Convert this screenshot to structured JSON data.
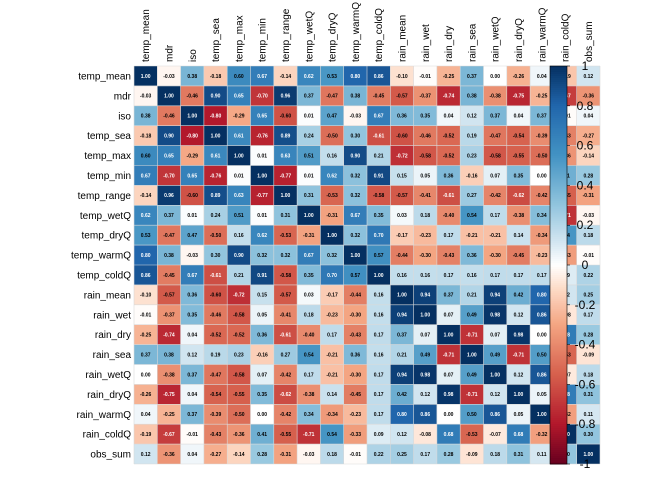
{
  "chart_data": {
    "type": "heatmap",
    "title": "",
    "variables": [
      "temp_mean",
      "mdr",
      "iso",
      "temp_sea",
      "temp_max",
      "temp_min",
      "temp_range",
      "temp_wetQ",
      "temp_dryQ",
      "temp_warmQ",
      "temp_coldQ",
      "rain_mean",
      "rain_wet",
      "rain_dry",
      "rain_sea",
      "rain_wetQ",
      "rain_dryQ",
      "rain_warmQ",
      "rain_coldQ",
      "obs_sum"
    ],
    "matrix": [
      [
        1.0,
        -0.03,
        0.38,
        -0.18,
        0.6,
        0.67,
        -0.14,
        0.62,
        0.53,
        0.8,
        0.86,
        -0.1,
        -0.01,
        -0.25,
        0.37,
        0.0,
        -0.26,
        0.04,
        -0.19,
        0.12
      ],
      [
        -0.03,
        1.0,
        -0.46,
        0.9,
        0.65,
        -0.7,
        0.96,
        0.37,
        -0.47,
        0.38,
        -0.45,
        -0.57,
        -0.37,
        -0.74,
        0.38,
        -0.38,
        -0.75,
        -0.25,
        -0.67,
        -0.36
      ],
      [
        0.38,
        -0.46,
        1.0,
        -0.8,
        -0.29,
        0.65,
        -0.6,
        0.01,
        0.47,
        -0.03,
        0.67,
        0.36,
        0.35,
        0.04,
        0.12,
        0.37,
        0.04,
        0.37,
        -0.01,
        0.04
      ],
      [
        -0.18,
        0.9,
        -0.8,
        1.0,
        0.61,
        -0.76,
        0.89,
        0.24,
        -0.5,
        0.3,
        -0.61,
        -0.6,
        -0.46,
        -0.52,
        0.19,
        -0.47,
        -0.54,
        -0.39,
        -0.43,
        -0.27
      ],
      [
        0.6,
        0.65,
        -0.29,
        0.61,
        1.0,
        0.01,
        0.63,
        0.51,
        0.16,
        0.9,
        0.21,
        -0.72,
        -0.58,
        -0.52,
        0.23,
        -0.58,
        -0.55,
        -0.5,
        -0.36,
        -0.14
      ],
      [
        0.67,
        -0.7,
        0.65,
        -0.76,
        0.01,
        1.0,
        -0.77,
        0.01,
        0.62,
        0.32,
        0.91,
        0.15,
        0.05,
        0.36,
        -0.16,
        0.07,
        0.35,
        0.0,
        0.41,
        0.28
      ],
      [
        -0.14,
        0.96,
        -0.6,
        0.89,
        0.63,
        -0.77,
        1.0,
        0.31,
        -0.53,
        0.32,
        -0.58,
        -0.57,
        -0.41,
        -0.61,
        0.27,
        -0.42,
        -0.62,
        -0.42,
        -0.55,
        -0.31
      ],
      [
        0.62,
        0.37,
        0.01,
        0.24,
        0.51,
        0.01,
        0.31,
        1.0,
        -0.31,
        0.67,
        0.35,
        0.03,
        0.18,
        -0.4,
        0.54,
        0.17,
        -0.38,
        0.34,
        -0.71,
        -0.03
      ],
      [
        0.53,
        -0.47,
        0.47,
        -0.5,
        0.16,
        0.62,
        -0.53,
        -0.31,
        1.0,
        0.32,
        0.7,
        -0.17,
        -0.23,
        0.17,
        -0.21,
        -0.21,
        0.14,
        -0.34,
        0.54,
        0.18
      ],
      [
        0.8,
        0.38,
        -0.03,
        0.3,
        0.9,
        0.32,
        0.32,
        0.67,
        0.32,
        1.0,
        0.57,
        -0.44,
        -0.3,
        -0.43,
        0.36,
        -0.3,
        -0.45,
        -0.23,
        -0.33,
        -0.01
      ],
      [
        0.86,
        -0.45,
        0.67,
        -0.61,
        0.21,
        0.91,
        -0.58,
        0.35,
        0.7,
        0.57,
        1.0,
        0.16,
        0.16,
        0.17,
        0.16,
        0.17,
        0.17,
        0.17,
        0.09,
        0.22
      ],
      [
        -0.1,
        -0.57,
        0.36,
        -0.6,
        -0.72,
        0.15,
        -0.57,
        0.03,
        -0.17,
        -0.44,
        0.16,
        1.0,
        0.94,
        0.37,
        0.21,
        0.94,
        0.42,
        0.8,
        0.12,
        0.25
      ],
      [
        -0.01,
        -0.37,
        0.35,
        -0.46,
        -0.58,
        0.05,
        -0.41,
        0.18,
        -0.23,
        -0.3,
        0.16,
        0.94,
        1.0,
        0.07,
        0.49,
        0.98,
        0.12,
        0.86,
        -0.08,
        0.17
      ],
      [
        -0.25,
        -0.74,
        0.04,
        -0.52,
        -0.52,
        0.36,
        -0.61,
        -0.4,
        0.17,
        -0.43,
        0.17,
        0.37,
        0.07,
        1.0,
        -0.71,
        0.07,
        0.98,
        0.0,
        0.68,
        0.28
      ],
      [
        0.37,
        0.38,
        0.12,
        0.19,
        0.23,
        -0.16,
        0.27,
        0.54,
        -0.21,
        0.36,
        0.16,
        0.21,
        0.49,
        -0.71,
        1.0,
        0.49,
        -0.71,
        0.5,
        -0.53,
        -0.09
      ],
      [
        0.0,
        -0.38,
        0.37,
        -0.47,
        -0.58,
        0.07,
        -0.42,
        0.17,
        -0.21,
        -0.3,
        0.17,
        0.94,
        0.98,
        0.07,
        0.49,
        1.0,
        0.12,
        0.86,
        -0.07,
        0.18
      ],
      [
        -0.26,
        -0.75,
        0.04,
        -0.54,
        -0.55,
        0.35,
        -0.62,
        -0.38,
        0.14,
        -0.45,
        0.17,
        0.42,
        0.12,
        0.98,
        -0.71,
        0.12,
        1.0,
        0.05,
        0.68,
        0.31
      ],
      [
        0.04,
        -0.25,
        0.37,
        -0.39,
        -0.5,
        0.0,
        -0.42,
        0.34,
        -0.34,
        -0.23,
        0.17,
        0.8,
        0.86,
        0.0,
        0.5,
        0.86,
        0.05,
        1.0,
        -0.32,
        0.11
      ],
      [
        -0.19,
        -0.67,
        -0.01,
        -0.43,
        -0.36,
        0.41,
        -0.55,
        -0.71,
        0.54,
        -0.33,
        0.09,
        0.12,
        -0.08,
        0.68,
        -0.53,
        -0.07,
        0.68,
        -0.32,
        1.0,
        0.3
      ],
      [
        0.12,
        -0.36,
        0.04,
        -0.27,
        -0.14,
        0.28,
        -0.31,
        -0.03,
        0.18,
        -0.01,
        0.22,
        0.25,
        0.17,
        0.28,
        -0.09,
        0.18,
        0.31,
        0.11,
        0.3,
        1.0
      ]
    ],
    "colorbar": {
      "range": [
        -1,
        1
      ],
      "ticks": [
        "1",
        "0.8",
        "0.6",
        "0.4",
        "0.2",
        "0",
        "-0.2",
        "-0.4",
        "-0.6",
        "-0.8",
        "-1"
      ],
      "colors": {
        "negative_extreme": "#67001f",
        "negative_mid": "#d6604d",
        "negative_light": "#fddbc7",
        "neutral": "#ffffff",
        "positive_light": "#d1e5f0",
        "positive_mid": "#4393c3",
        "positive_extreme": "#053061"
      }
    },
    "xlabel": "",
    "ylabel": "",
    "grid": true,
    "legend": "right"
  }
}
